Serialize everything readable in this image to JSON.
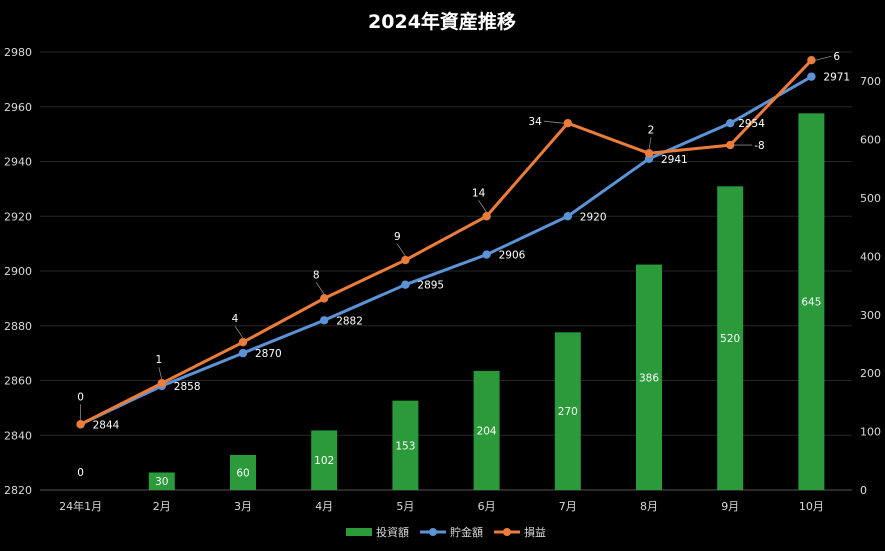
{
  "chart_data": {
    "type": "bar",
    "title": "2024年資産推移",
    "categories": [
      "24年1月",
      "2月",
      "3月",
      "4月",
      "5月",
      "6月",
      "7月",
      "8月",
      "9月",
      "10月"
    ],
    "left_axis": {
      "min": 2820,
      "max": 2980,
      "step": 20
    },
    "right_axis": {
      "min": 0,
      "max": 750,
      "step": 100,
      "ticks": [
        0,
        100,
        200,
        300,
        400,
        500,
        600,
        700
      ]
    },
    "grid": true,
    "legend_position": "bottom",
    "series": [
      {
        "name": "投資額",
        "type": "bar",
        "axis": "right",
        "color": "#2a9a3a",
        "values": [
          0,
          30,
          60,
          102,
          153,
          204,
          270,
          386,
          520,
          645
        ]
      },
      {
        "name": "貯金額",
        "type": "line",
        "axis": "left",
        "color": "#5b93d6",
        "values": [
          2844,
          2858,
          2870,
          2882,
          2895,
          2906,
          2920,
          2941,
          2954,
          2971
        ]
      },
      {
        "name": "損益",
        "type": "line",
        "axis": "left",
        "color": "#ec7c3a",
        "values": [
          2844,
          2859,
          2874,
          2890,
          2904,
          2920,
          2954,
          2943,
          2946,
          2977
        ],
        "labels": [
          0,
          1,
          4,
          8,
          9,
          14,
          34,
          2,
          -8,
          6
        ]
      }
    ]
  }
}
